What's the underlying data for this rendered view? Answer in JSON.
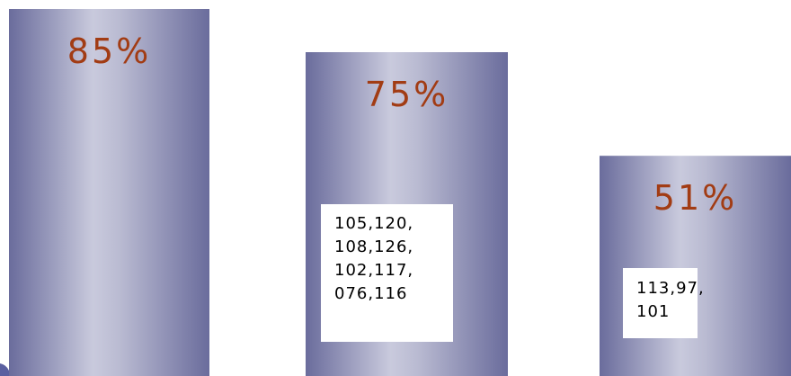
{
  "chart_data": {
    "type": "bar",
    "categories": [
      null,
      null,
      null
    ],
    "values": [
      85,
      75,
      51
    ],
    "value_labels": [
      "85%",
      "75%",
      "51%"
    ],
    "color": "#6a6c9c",
    "annotations": [
      {
        "lines": [
          "105,120,",
          "108,126,",
          "102,117,",
          "076,116"
        ]
      },
      {
        "lines": [
          "113,97,",
          "101"
        ]
      }
    ]
  }
}
